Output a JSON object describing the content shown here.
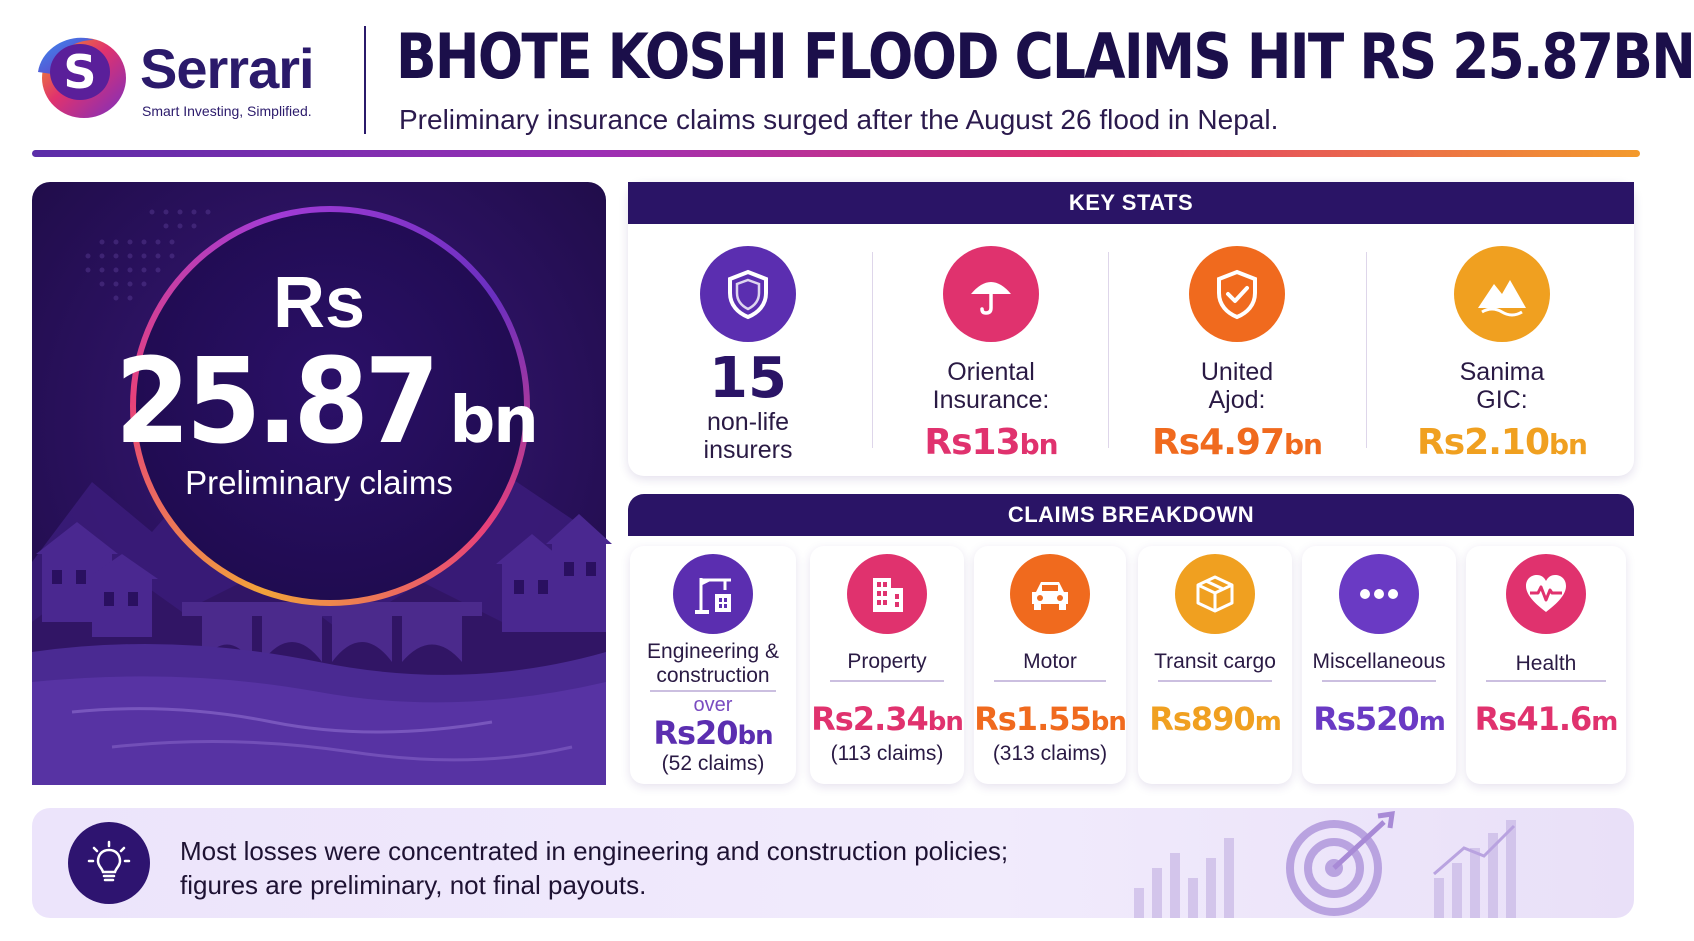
{
  "brand": {
    "name": "Serrari",
    "tagline": "Smart Investing, Simplified.",
    "logo_letter": "S"
  },
  "header": {
    "title": "BHOTE KOSHI FLOOD CLAIMS HIT RS 25.87BN",
    "subtitle": "Preliminary insurance claims surged after the August 26 flood in Nepal."
  },
  "hero": {
    "currency": "Rs",
    "value": "25.87",
    "unit": "bn",
    "label": "Preliminary claims"
  },
  "key_stats": {
    "heading": "KEY STATS",
    "insurers": {
      "count": "15",
      "line1": "non-life",
      "line2": "insurers",
      "icon": "shield-icon",
      "color": "#5b2eb0"
    },
    "items": [
      {
        "line1": "Oriental",
        "line2": "Insurance:",
        "value": "Rs13",
        "unit": "bn",
        "icon": "umbrella-icon",
        "color": "#e0326e"
      },
      {
        "line1": "United",
        "line2": "Ajod:",
        "value": "Rs4.97",
        "unit": "bn",
        "icon": "shield-check-icon",
        "color": "#f06a1e"
      },
      {
        "line1": "Sanima",
        "line2": "GIC:",
        "value": "Rs2.10",
        "unit": "bn",
        "icon": "mountain-icon",
        "color": "#f0a020"
      }
    ]
  },
  "claims_breakdown": {
    "heading": "CLAIMS BREAKDOWN",
    "items": [
      {
        "line1": "Engineering &",
        "line2": "construction",
        "prefix": "over",
        "value": "Rs20",
        "unit": "bn",
        "claims": "(52 claims)",
        "icon": "crane-icon",
        "color": "#5b2eb0"
      },
      {
        "line1": "Property",
        "line2": "",
        "prefix": "",
        "value": "Rs2.34",
        "unit": "bn",
        "claims": "(113 claims)",
        "icon": "building-icon",
        "color": "#e0326e"
      },
      {
        "line1": "Motor",
        "line2": "",
        "prefix": "",
        "value": "Rs1.55",
        "unit": "bn",
        "claims": "(313 claims)",
        "icon": "car-icon",
        "color": "#f06a1e"
      },
      {
        "line1": "Transit cargo",
        "line2": "",
        "prefix": "",
        "value": "Rs890",
        "unit": "m",
        "claims": "",
        "icon": "box-icon",
        "color": "#f0a020"
      },
      {
        "line1": "Miscellaneous",
        "line2": "",
        "prefix": "",
        "value": "Rs520",
        "unit": "m",
        "claims": "",
        "icon": "dots-icon",
        "color": "#6a3ac4"
      },
      {
        "line1": "Health",
        "line2": "",
        "prefix": "",
        "value": "Rs41.6",
        "unit": "m",
        "claims": "",
        "icon": "heart-pulse-icon",
        "color": "#e0326e"
      }
    ]
  },
  "note": {
    "line1": "Most losses were concentrated in engineering and construction policies;",
    "line2": "figures are preliminary, not final payouts.",
    "icon": "lightbulb-icon"
  },
  "colors": {
    "navy": "#2a1466",
    "purple": "#5b2eb0",
    "magenta": "#e0326e",
    "orange": "#f06a1e",
    "amber": "#f0a020"
  }
}
